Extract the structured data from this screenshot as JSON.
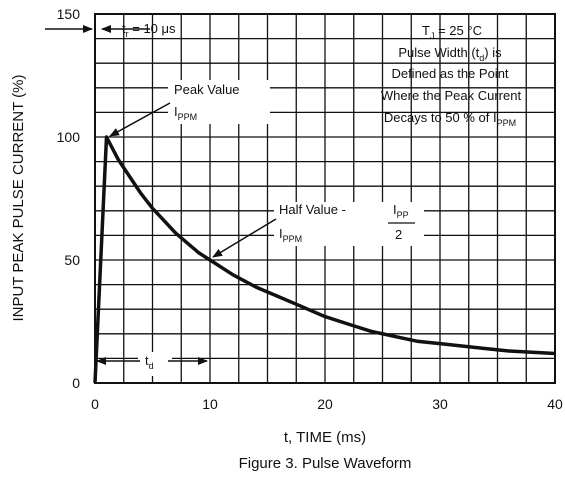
{
  "chart_data": {
    "type": "line",
    "title": "",
    "caption": "Figure 3. Pulse Waveform",
    "xlabel": "t, TIME (ms)",
    "ylabel": "INPUT PEAK PULSE CURRENT (%)",
    "xlim": [
      0,
      40
    ],
    "ylim": [
      0,
      150
    ],
    "x_ticks": [
      0,
      10,
      20,
      30,
      40
    ],
    "y_ticks": [
      0,
      50,
      100,
      150
    ],
    "x_grid_step": 2.5,
    "y_grid_step": 10,
    "grid": true,
    "series": [
      {
        "x": [
          0,
          1,
          2,
          3,
          4,
          5,
          6,
          7,
          8,
          9,
          10,
          12,
          14,
          16,
          18,
          20,
          22,
          24,
          26,
          28,
          30,
          32,
          34,
          36,
          38,
          40
        ],
        "y": [
          0,
          100,
          91,
          84,
          77,
          71,
          66,
          61,
          57,
          53,
          50,
          44,
          39,
          35,
          31,
          27,
          24,
          21,
          19,
          17,
          16,
          15,
          14,
          13,
          12.5,
          12
        ]
      }
    ],
    "annotations": {
      "tr_label": "t",
      "tr_sub": "r",
      "tr_value": " = 10 μs",
      "conditions": {
        "line1_a": "T",
        "line1_sub": "J",
        "line1_b": " = 25 °C",
        "line2_a": "Pulse Width (t",
        "line2_sub": "d",
        "line2_b": ") is",
        "line3": "Defined as the Point",
        "line4": "Where the Peak Current",
        "line5_a": "Decays to 50 % of I",
        "line5_sub": "PPM"
      },
      "peak_label": "Peak Value",
      "peak_sym": "I",
      "peak_sub": "PPM",
      "half_label": "Half Value - ",
      "half_frac_sym": "I",
      "half_frac_sub": "PP",
      "half_frac_den": "2",
      "half_sym": "I",
      "half_sub": "PPM",
      "td_label": "t",
      "td_sub": "d"
    }
  }
}
